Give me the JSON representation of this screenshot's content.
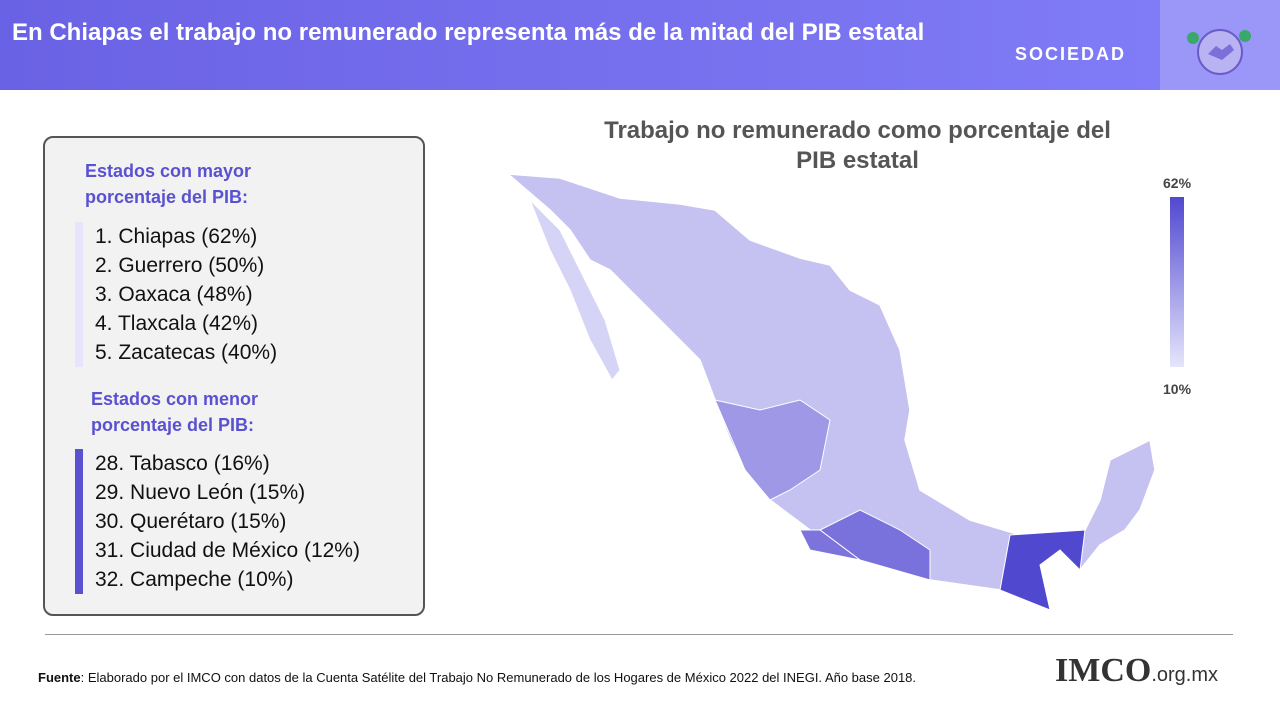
{
  "header": {
    "title": "En Chiapas el trabajo no remunerado representa más de la mitad del PIB estatal",
    "section": "SOCIEDAD"
  },
  "box": {
    "top_title": "Estados con mayor porcentaje del PIB:",
    "top_items": [
      "1. Chiapas (62%)",
      "2. Guerrero (50%)",
      "3. Oaxaca (48%)",
      "4. Tlaxcala (42%)",
      "5. Zacatecas (40%)"
    ],
    "bottom_title": "Estados con menor porcentaje del PIB:",
    "bottom_items": [
      "28. Tabasco (16%)",
      "29. Nuevo León (15%)",
      "30. Querétaro (15%)",
      "31. Ciudad de México (12%)",
      "32. Campeche (10%)"
    ]
  },
  "map": {
    "title": "Trabajo no remunerado como porcentaje del PIB estatal",
    "legend_max": "62%",
    "legend_min": "10%"
  },
  "footer": {
    "source_label": "Fuente",
    "source_text": ": Elaborado por el IMCO con datos de la Cuenta Satélite del Trabajo No Remunerado de los Hogares de México 2022 del INEGI. Año base 2018.",
    "logo": "IMCO",
    "logo_suffix": ".org.mx"
  }
}
